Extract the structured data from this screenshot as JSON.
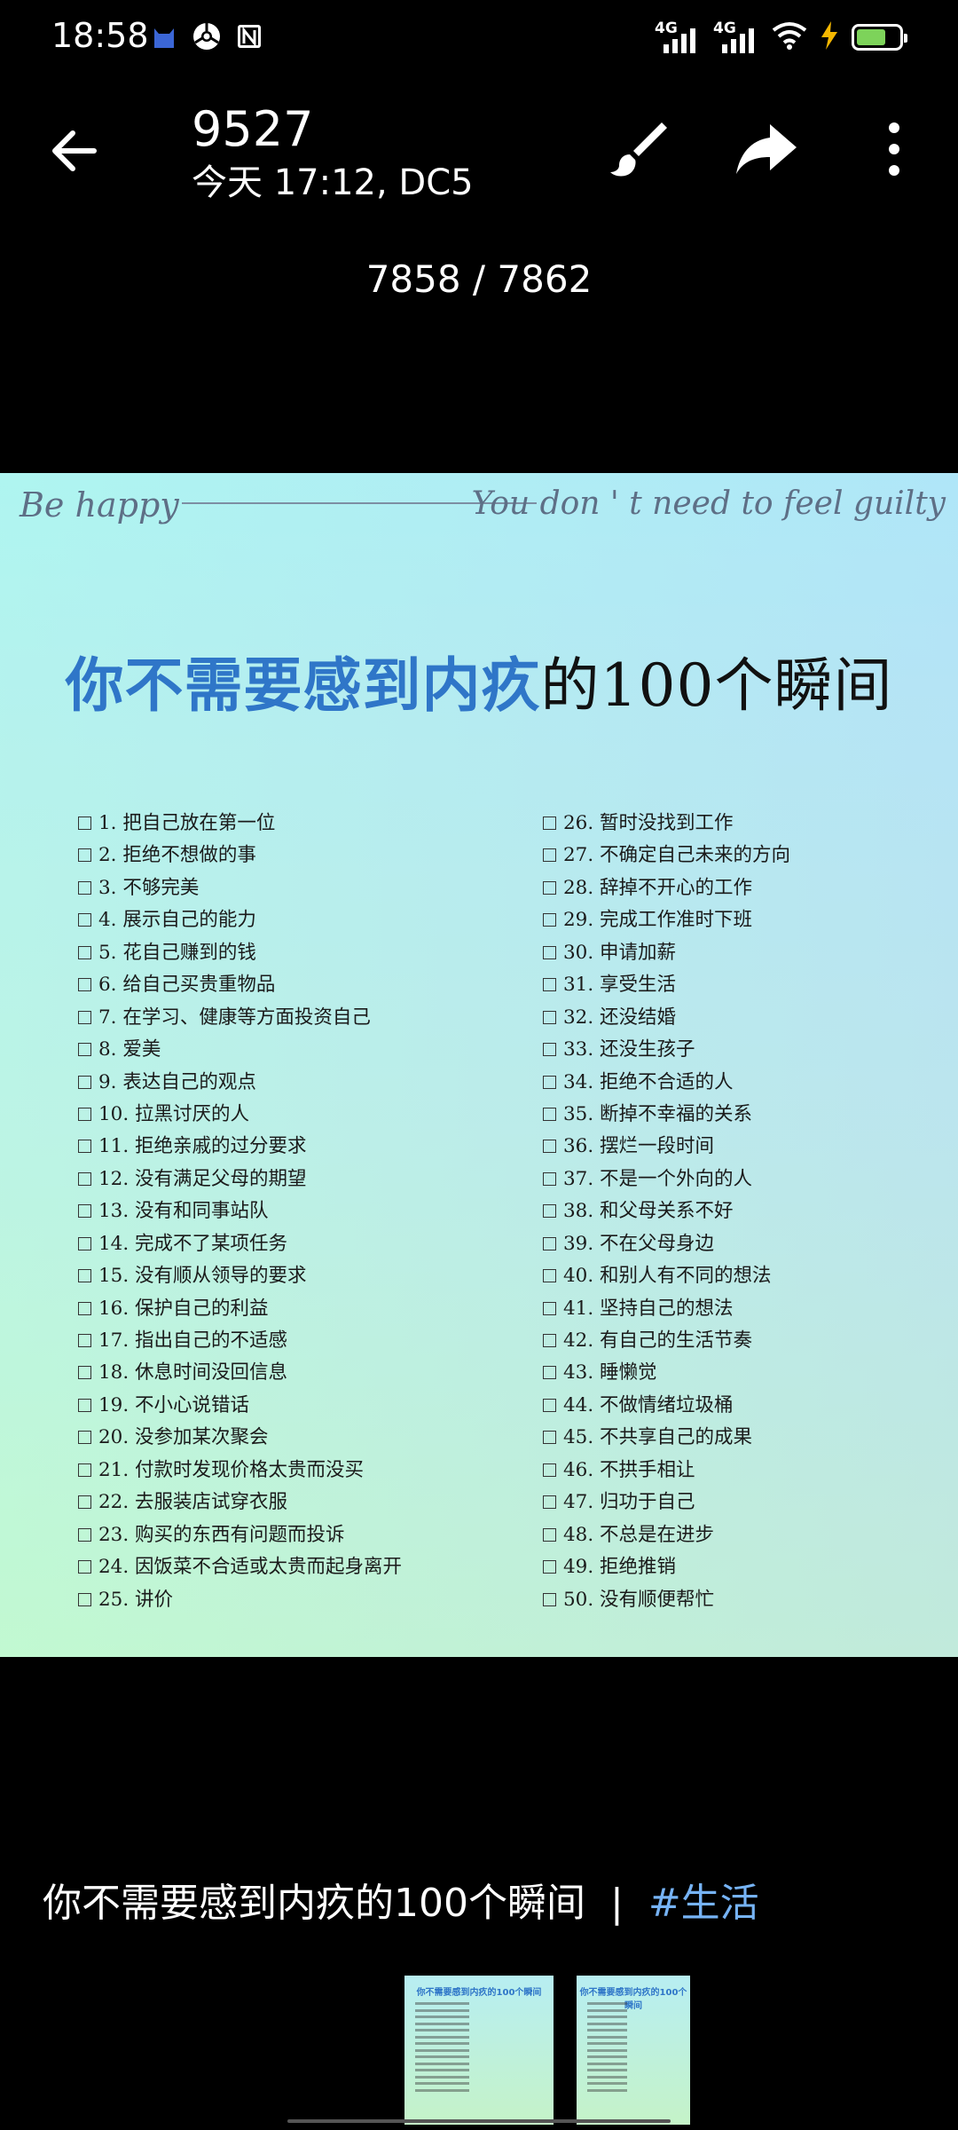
{
  "status_bar": {
    "time": "18:58",
    "app_icons": [
      "cat-app-icon",
      "chrome-icon",
      "notion-icon"
    ],
    "signal_1_label": "4G",
    "signal_2_label": "4G",
    "battery_level": 0.7,
    "battery_color": "#7dd35a",
    "charging": true
  },
  "header": {
    "title": "9527",
    "subtitle": "今天 17:12, DC5",
    "icons": [
      "back-arrow-icon",
      "brush-icon",
      "share-arrow-icon",
      "more-vertical-icon"
    ]
  },
  "viewer": {
    "counter": "7858 / 7862"
  },
  "photo": {
    "banner_left": "Be happy",
    "banner_right": "You don ' t need to feel guilty",
    "title_highlight": "你不需要感到内疚",
    "title_rest": "的100个瞬间",
    "title_highlight_color": "#2f76c8",
    "items_left": [
      "1. 把自己放在第一位",
      "2. 拒绝不想做的事",
      "3. 不够完美",
      "4. 展示自己的能力",
      "5. 花自己赚到的钱",
      "6. 给自己买贵重物品",
      "7. 在学习、健康等方面投资自己",
      "8. 爱美",
      "9. 表达自己的观点",
      "10. 拉黑讨厌的人",
      "11. 拒绝亲戚的过分要求",
      "12. 没有满足父母的期望",
      "13. 没有和同事站队",
      "14. 完成不了某项任务",
      "15. 没有顺从领导的要求",
      "16. 保护自己的利益",
      "17. 指出自己的不适感",
      "18. 休息时间没回信息",
      "19. 不小心说错话",
      "20. 没参加某次聚会",
      "21. 付款时发现价格太贵而没买",
      "22. 去服装店试穿衣服",
      "23. 购买的东西有问题而投诉",
      "24. 因饭菜不合适或太贵而起身离开",
      "25. 讲价"
    ],
    "items_right": [
      "26. 暂时没找到工作",
      "27. 不确定自己未来的方向",
      "28. 辞掉不开心的工作",
      "29. 完成工作准时下班",
      "30. 申请加薪",
      "31. 享受生活",
      "32. 还没结婚",
      "33. 还没生孩子",
      "34. 拒绝不合适的人",
      "35. 断掉不幸福的关系",
      "36. 摆烂一段时间",
      "37. 不是一个外向的人",
      "38. 和父母关系不好",
      "39. 不在父母身边",
      "40. 和别人有不同的想法",
      "41. 坚持自己的想法",
      "42. 有自己的生活节奏",
      "43. 睡懒觉",
      "44. 不做情绪垃圾桶",
      "45. 不共享自己的成果",
      "46. 不拱手相让",
      "47. 归功于自己",
      "48. 不总是在进步",
      "49. 拒绝推销",
      "50. 没有顺便帮忙"
    ]
  },
  "caption": {
    "text": "你不需要感到内疚的100个瞬间",
    "separator": "|",
    "hashtag": "#生活",
    "hashtag_color": "#76b3f5"
  },
  "thumbnails": [
    {
      "title": "你不需要感到内疚的100个瞬间"
    },
    {
      "title": "你不需要感到内疚的100个瞬间"
    }
  ]
}
